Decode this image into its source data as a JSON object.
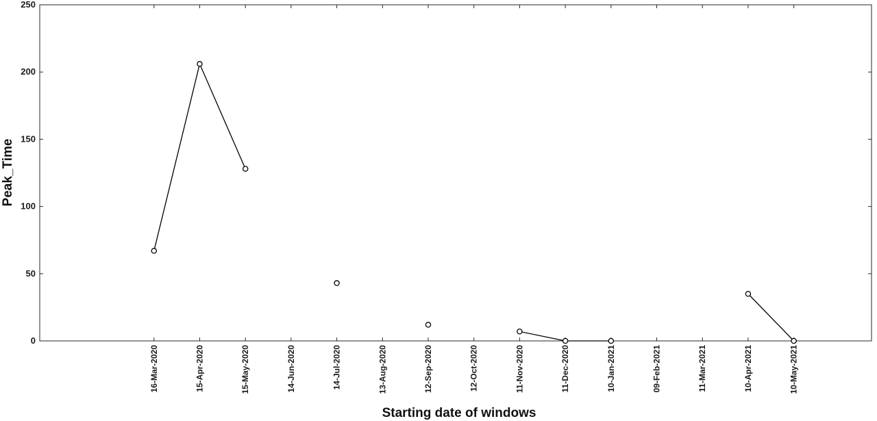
{
  "chart_data": {
    "type": "line",
    "title": "",
    "xlabel": "Starting date of windows",
    "ylabel": "Peak_Time",
    "ylim": [
      0,
      250
    ],
    "yticks": [
      "0",
      "50",
      "100",
      "150",
      "200",
      "250"
    ],
    "x_categories": [
      "16-Mar-2020",
      "15-Apr-2020",
      "15-May-2020",
      "14-Jun-2020",
      "14-Jul-2020",
      "13-Aug-2020",
      "12-Sep-2020",
      "12-Oct-2020",
      "11-Nov-2020",
      "11-Dec-2020",
      "10-Jan-2021",
      "09-Feb-2021",
      "11-Mar-2021",
      "10-Apr-2021",
      "10-May-2021"
    ],
    "x_axis_padding_categories": [
      2.5,
      1.7
    ],
    "values": [
      67,
      206,
      128,
      null,
      43,
      null,
      12,
      null,
      7,
      0,
      0,
      null,
      null,
      35,
      0
    ],
    "grid": false,
    "box": true,
    "marker": "open-circle",
    "line_color": "#000000"
  }
}
